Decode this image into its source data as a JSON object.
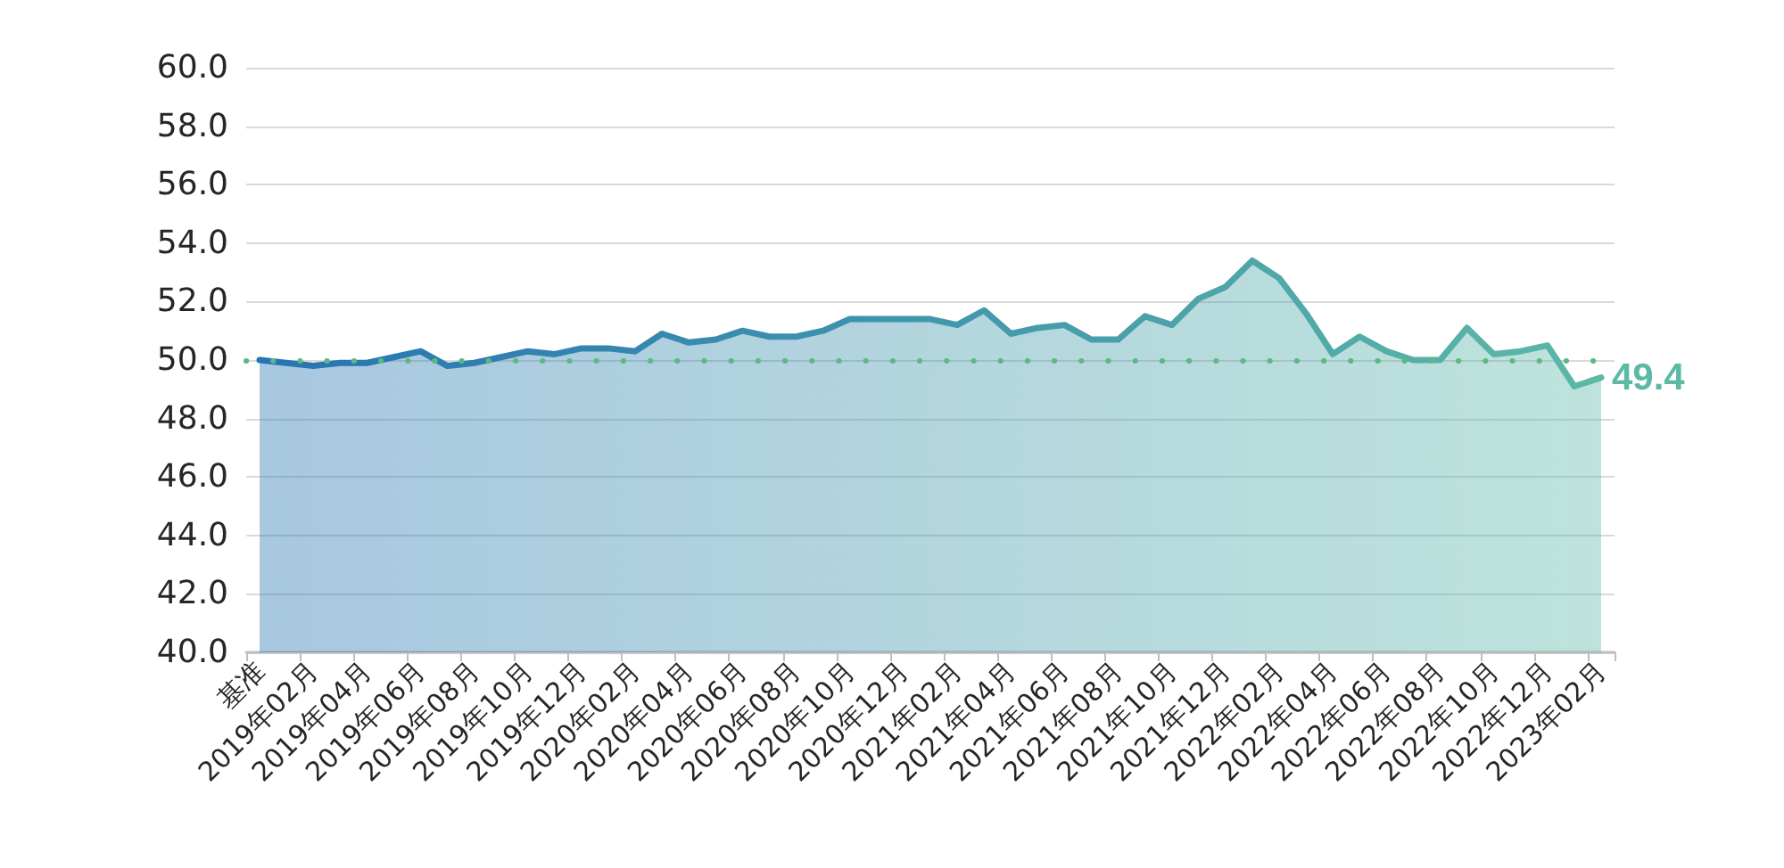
{
  "chart_data": {
    "type": "area",
    "categories": [
      "基准",
      null,
      "2019年02月",
      null,
      "2019年04月",
      null,
      "2019年06月",
      null,
      "2019年08月",
      null,
      "2019年10月",
      null,
      "2019年12月",
      null,
      "2020年02月",
      null,
      "2020年04月",
      null,
      "2020年06月",
      null,
      "2020年08月",
      null,
      "2020年10月",
      null,
      "2020年12月",
      null,
      "2021年02月",
      null,
      "2021年04月",
      null,
      "2021年06月",
      null,
      "2021年08月",
      null,
      "2021年10月",
      null,
      "2021年12月",
      null,
      "2022年02月",
      null,
      "2022年04月",
      null,
      "2022年06月",
      null,
      "2022年08月",
      null,
      "2022年10月",
      null,
      "2022年12月",
      null,
      "2023年02月"
    ],
    "values": [
      50.0,
      49.9,
      49.8,
      49.9,
      49.9,
      50.1,
      50.3,
      49.8,
      49.9,
      50.1,
      50.3,
      50.2,
      50.4,
      50.4,
      50.3,
      50.9,
      50.6,
      50.7,
      51.0,
      50.8,
      50.8,
      51.0,
      51.4,
      51.4,
      51.4,
      51.4,
      51.2,
      51.7,
      50.9,
      51.1,
      51.2,
      50.7,
      50.7,
      51.5,
      51.2,
      52.1,
      52.5,
      53.4,
      52.8,
      51.6,
      50.2,
      50.8,
      50.3,
      50.0,
      50.0,
      51.1,
      50.2,
      50.3,
      50.5,
      49.1,
      49.4
    ],
    "colors": [
      "#2674b2",
      "#2775b2",
      "#2877b2",
      "#2978b1",
      "#2a79b1",
      "#2c7bb1",
      "#2d7cb1",
      "#2e7eb0",
      "#2f7fb0",
      "#3080b0",
      "#3182b0",
      "#3283af",
      "#3384af",
      "#3486af",
      "#3587af",
      "#3788ae",
      "#388aae",
      "#398bae",
      "#3a8dae",
      "#3b8ead",
      "#3c8fad",
      "#3d91ad",
      "#3e92ad",
      "#3f93ac",
      "#4095ac",
      "#4296ac",
      "#4397ac",
      "#4499ac",
      "#459aab",
      "#469bab",
      "#479dab",
      "#489eab",
      "#49a0aa",
      "#4aa1aa",
      "#4ba2aa",
      "#4da4aa",
      "#4ea5a9",
      "#4fa6a9",
      "#50a8a9",
      "#51a9a9",
      "#52aaa8",
      "#53aca8",
      "#54ada8",
      "#55afa8",
      "#56b0a7",
      "#58b1a7",
      "#59b3a7",
      "#5ab4a7",
      "#5bb5a7",
      "#5cb7a6",
      "#5db8a6"
    ],
    "value_labels": [
      null,
      null,
      null,
      null,
      null,
      null,
      null,
      null,
      null,
      null,
      null,
      null,
      null,
      null,
      null,
      null,
      null,
      null,
      null,
      null,
      null,
      null,
      null,
      null,
      null,
      null,
      null,
      null,
      null,
      null,
      null,
      null,
      null,
      null,
      null,
      null,
      null,
      null,
      null,
      null,
      null,
      null,
      null,
      null,
      null,
      null,
      null,
      null,
      null,
      null,
      "49.4"
    ],
    "ylim": [
      40,
      60
    ],
    "yticks": [
      {
        "value": 40,
        "label": "40.0"
      },
      {
        "value": 42,
        "label": "42.0"
      },
      {
        "value": 44,
        "label": "44.0"
      },
      {
        "value": 46,
        "label": "46.0"
      },
      {
        "value": 48,
        "label": "48.0"
      },
      {
        "value": 50,
        "label": "50.0"
      },
      {
        "value": 52,
        "label": "52.0"
      },
      {
        "value": 54,
        "label": "54.0"
      },
      {
        "value": 56,
        "label": "56.0"
      },
      {
        "value": 58,
        "label": "58.0"
      },
      {
        "value": 60,
        "label": "60.0"
      }
    ],
    "grid": "y",
    "marker": "none",
    "ref_lines": [
      {
        "axis": "y",
        "value": 50,
        "color": "#5cb885",
        "line_style": "dotted"
      }
    ]
  }
}
